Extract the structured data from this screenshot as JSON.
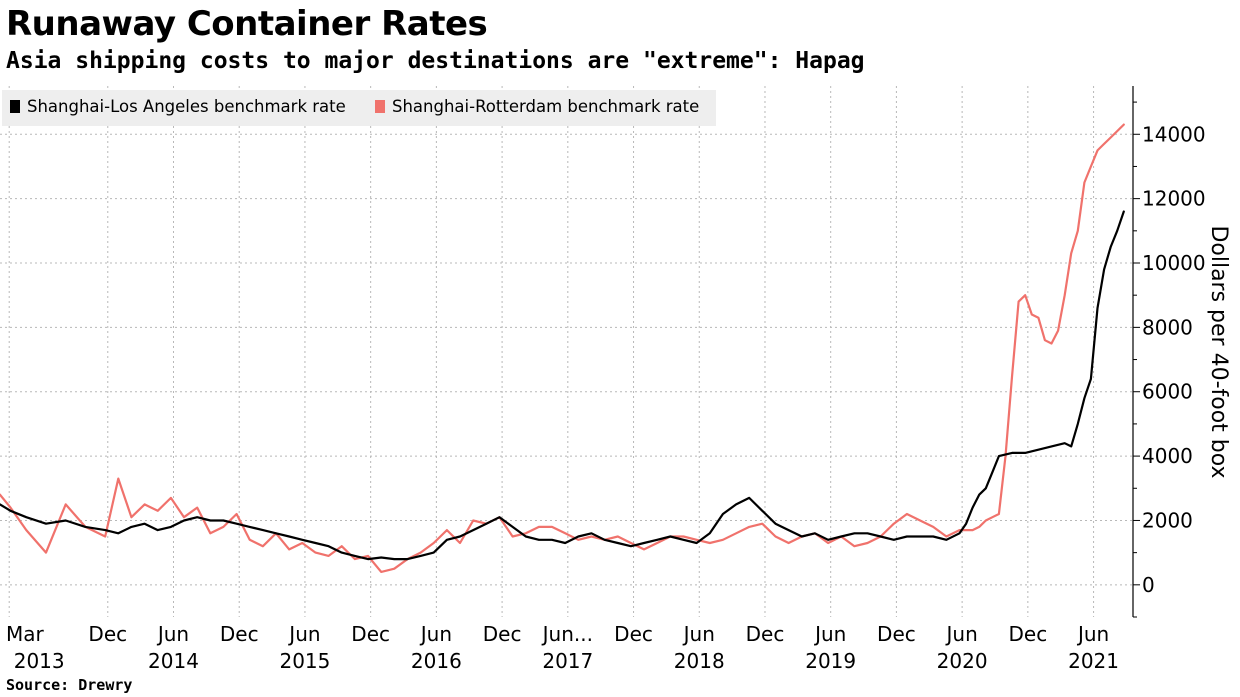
{
  "header": {
    "title": "Runaway Container Rates",
    "subtitle": "Asia shipping costs to major destinations are \"extreme\": Hapag"
  },
  "footer": {
    "source": "Source: Drewry"
  },
  "chart_data": {
    "type": "line",
    "title": "Runaway Container Rates",
    "subtitle": "Asia shipping costs to major destinations are \"extreme\": Hapag",
    "xlabel": "",
    "ylabel": "Dollars per 40-foot box",
    "ylim": [
      -1000,
      15500
    ],
    "xlim": [
      2013.1,
      2021.72
    ],
    "y_ticks": [
      0,
      2000,
      4000,
      6000,
      8000,
      10000,
      12000,
      14000
    ],
    "x_ticks": [
      {
        "x": 2013.17,
        "label": "Mar",
        "year": "2013"
      },
      {
        "x": 2013.92,
        "label": "Dec",
        "year": ""
      },
      {
        "x": 2014.42,
        "label": "Jun",
        "year": "2014"
      },
      {
        "x": 2014.92,
        "label": "Dec",
        "year": ""
      },
      {
        "x": 2015.42,
        "label": "Jun",
        "year": "2015"
      },
      {
        "x": 2015.92,
        "label": "Dec",
        "year": ""
      },
      {
        "x": 2016.42,
        "label": "Jun",
        "year": "2016"
      },
      {
        "x": 2016.92,
        "label": "Dec",
        "year": ""
      },
      {
        "x": 2017.42,
        "label": "Jun...",
        "year": "2017"
      },
      {
        "x": 2017.92,
        "label": "Dec",
        "year": ""
      },
      {
        "x": 2018.42,
        "label": "Jun",
        "year": "2018"
      },
      {
        "x": 2018.92,
        "label": "Dec",
        "year": ""
      },
      {
        "x": 2019.42,
        "label": "Jun",
        "year": "2019"
      },
      {
        "x": 2019.92,
        "label": "Dec",
        "year": ""
      },
      {
        "x": 2020.42,
        "label": "Jun",
        "year": "2020"
      },
      {
        "x": 2020.92,
        "label": "Dec",
        "year": ""
      },
      {
        "x": 2021.42,
        "label": "Jun",
        "year": "2021"
      }
    ],
    "grid": "vertical-dotted",
    "legend_position": "top-left",
    "series": [
      {
        "name": "Shanghai-Los Angeles benchmark rate",
        "color": "#000000",
        "x": [
          2013.1,
          2013.18,
          2013.3,
          2013.45,
          2013.6,
          2013.75,
          2013.9,
          2014.0,
          2014.1,
          2014.2,
          2014.3,
          2014.4,
          2014.5,
          2014.6,
          2014.7,
          2014.8,
          2014.9,
          2015.0,
          2015.1,
          2015.2,
          2015.3,
          2015.4,
          2015.5,
          2015.6,
          2015.7,
          2015.8,
          2015.9,
          2016.0,
          2016.1,
          2016.2,
          2016.3,
          2016.4,
          2016.5,
          2016.6,
          2016.7,
          2016.8,
          2016.9,
          2017.0,
          2017.1,
          2017.2,
          2017.3,
          2017.4,
          2017.5,
          2017.6,
          2017.7,
          2017.8,
          2017.9,
          2018.0,
          2018.1,
          2018.2,
          2018.3,
          2018.4,
          2018.5,
          2018.6,
          2018.7,
          2018.8,
          2018.9,
          2019.0,
          2019.1,
          2019.2,
          2019.3,
          2019.4,
          2019.5,
          2019.6,
          2019.7,
          2019.8,
          2019.9,
          2020.0,
          2020.1,
          2020.2,
          2020.3,
          2020.4,
          2020.45,
          2020.5,
          2020.55,
          2020.6,
          2020.65,
          2020.7,
          2020.8,
          2020.9,
          2021.0,
          2021.1,
          2021.2,
          2021.25,
          2021.3,
          2021.35,
          2021.4,
          2021.45,
          2021.5,
          2021.55,
          2021.6,
          2021.65
        ],
        "values": [
          2500,
          2300,
          2100,
          1900,
          2000,
          1800,
          1700,
          1600,
          1800,
          1900,
          1700,
          1800,
          2000,
          2100,
          2000,
          2000,
          1900,
          1800,
          1700,
          1600,
          1500,
          1400,
          1300,
          1200,
          1000,
          900,
          800,
          850,
          800,
          800,
          900,
          1000,
          1400,
          1500,
          1700,
          1900,
          2100,
          1800,
          1500,
          1400,
          1400,
          1300,
          1500,
          1600,
          1400,
          1300,
          1200,
          1300,
          1400,
          1500,
          1400,
          1300,
          1600,
          2200,
          2500,
          2700,
          2300,
          1900,
          1700,
          1500,
          1600,
          1400,
          1500,
          1600,
          1600,
          1500,
          1400,
          1500,
          1500,
          1500,
          1400,
          1600,
          1900,
          2400,
          2800,
          3000,
          3500,
          4000,
          4100,
          4100,
          4200,
          4300,
          4400,
          4300,
          5000,
          5800,
          6400,
          8600,
          9800,
          10500,
          11000,
          11600
        ]
      },
      {
        "name": "Shanghai-Rotterdam benchmark rate",
        "color": "#f0726c",
        "x": [
          2013.1,
          2013.18,
          2013.3,
          2013.45,
          2013.6,
          2013.75,
          2013.9,
          2014.0,
          2014.1,
          2014.2,
          2014.3,
          2014.4,
          2014.5,
          2014.6,
          2014.7,
          2014.8,
          2014.9,
          2015.0,
          2015.1,
          2015.2,
          2015.3,
          2015.4,
          2015.5,
          2015.6,
          2015.7,
          2015.8,
          2015.9,
          2016.0,
          2016.1,
          2016.2,
          2016.3,
          2016.4,
          2016.5,
          2016.6,
          2016.7,
          2016.8,
          2016.9,
          2017.0,
          2017.1,
          2017.2,
          2017.3,
          2017.4,
          2017.5,
          2017.6,
          2017.7,
          2017.8,
          2017.9,
          2018.0,
          2018.1,
          2018.2,
          2018.3,
          2018.4,
          2018.5,
          2018.6,
          2018.7,
          2018.8,
          2018.9,
          2019.0,
          2019.1,
          2019.2,
          2019.3,
          2019.4,
          2019.5,
          2019.6,
          2019.7,
          2019.8,
          2019.9,
          2020.0,
          2020.1,
          2020.2,
          2020.3,
          2020.4,
          2020.5,
          2020.55,
          2020.6,
          2020.65,
          2020.7,
          2020.75,
          2020.8,
          2020.85,
          2020.9,
          2020.95,
          2021.0,
          2021.05,
          2021.1,
          2021.15,
          2021.2,
          2021.25,
          2021.3,
          2021.35,
          2021.4,
          2021.45,
          2021.5,
          2021.55,
          2021.6,
          2021.65
        ],
        "values": [
          2800,
          2400,
          1700,
          1000,
          2500,
          1800,
          1500,
          3300,
          2100,
          2500,
          2300,
          2700,
          2100,
          2400,
          1600,
          1800,
          2200,
          1400,
          1200,
          1600,
          1100,
          1300,
          1000,
          900,
          1200,
          800,
          900,
          400,
          500,
          800,
          1000,
          1300,
          1700,
          1300,
          2000,
          1900,
          2100,
          1500,
          1600,
          1800,
          1800,
          1600,
          1400,
          1500,
          1400,
          1500,
          1300,
          1100,
          1300,
          1500,
          1500,
          1400,
          1300,
          1400,
          1600,
          1800,
          1900,
          1500,
          1300,
          1500,
          1600,
          1300,
          1500,
          1200,
          1300,
          1500,
          1900,
          2200,
          2000,
          1800,
          1500,
          1700,
          1700,
          1800,
          2000,
          2100,
          2200,
          4000,
          6500,
          8800,
          9000,
          8400,
          8300,
          7600,
          7500,
          7900,
          9000,
          10300,
          11000,
          12500,
          13000,
          13500,
          13700,
          13900,
          14100,
          14300
        ]
      }
    ]
  }
}
